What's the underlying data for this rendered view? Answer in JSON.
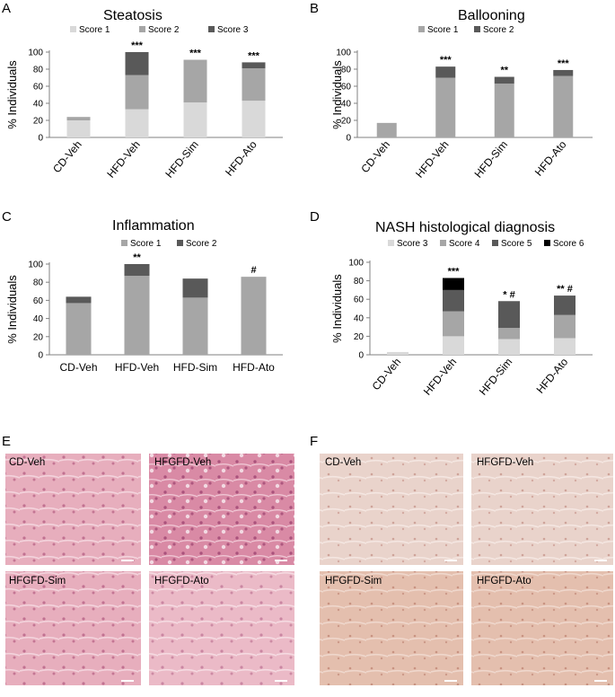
{
  "panels": {
    "A": {
      "letter": "A",
      "chart_data": {
        "type": "bar",
        "stacked": true,
        "title": "Steatosis",
        "ylabel": "% Individuals",
        "ylim": [
          0,
          100
        ],
        "yticks": [
          0,
          20,
          40,
          60,
          80,
          100
        ],
        "categories": [
          "CD-Veh",
          "HFD-Veh",
          "HFD-Sim",
          "HFD-Ato"
        ],
        "series": [
          {
            "name": "Score 1",
            "color": "#d9d9d9",
            "values": [
              20,
              33,
              41,
              43
            ]
          },
          {
            "name": "Score 2",
            "color": "#a6a6a6",
            "values": [
              4,
              40,
              50,
              38
            ]
          },
          {
            "name": "Score 3",
            "color": "#595959",
            "values": [
              0,
              27,
              0,
              7
            ]
          }
        ],
        "annotations": [
          "",
          "***",
          "***",
          "***"
        ],
        "legend": "top"
      }
    },
    "B": {
      "letter": "B",
      "chart_data": {
        "type": "bar",
        "stacked": true,
        "title": "Ballooning",
        "ylabel": "% Individuals",
        "ylim": [
          0,
          100
        ],
        "yticks": [
          0,
          20,
          40,
          60,
          80,
          100
        ],
        "categories": [
          "CD-Veh",
          "HFD-Veh",
          "HFD-Sim",
          "HFD-Ato"
        ],
        "series": [
          {
            "name": "Score 1",
            "color": "#a6a6a6",
            "values": [
              17,
              70,
              63,
              72
            ]
          },
          {
            "name": "Score 2",
            "color": "#595959",
            "values": [
              0,
              13,
              8,
              7
            ]
          }
        ],
        "annotations": [
          "",
          "***",
          "**",
          "***"
        ],
        "legend": "top"
      }
    },
    "C": {
      "letter": "C",
      "chart_data": {
        "type": "bar",
        "stacked": true,
        "title": "Inflammation",
        "ylabel": "% Individuals",
        "ylim": [
          0,
          100
        ],
        "yticks": [
          0,
          20,
          40,
          60,
          80,
          100
        ],
        "categories": [
          "CD-Veh",
          "HFD-Veh",
          "HFD-Sim",
          "HFD-Ato"
        ],
        "series": [
          {
            "name": "Score 1",
            "color": "#a6a6a6",
            "values": [
              57,
              87,
              63,
              86
            ]
          },
          {
            "name": "Score 2",
            "color": "#595959",
            "values": [
              7,
              13,
              21,
              0
            ]
          }
        ],
        "annotations": [
          "",
          "**",
          "",
          "#"
        ],
        "legend": "top"
      }
    },
    "D": {
      "letter": "D",
      "chart_data": {
        "type": "bar",
        "stacked": true,
        "title": "NASH histological diagnosis",
        "ylabel": "% Individuals",
        "ylim": [
          0,
          100
        ],
        "yticks": [
          0,
          20,
          40,
          60,
          80,
          100
        ],
        "categories": [
          "CD-Veh",
          "HFD-Veh",
          "HFD-Sim",
          "HFD-Ato"
        ],
        "series": [
          {
            "name": "Score 3",
            "color": "#d9d9d9",
            "values": [
              3,
              20,
              17,
              18
            ]
          },
          {
            "name": "Score 4",
            "color": "#a6a6a6",
            "values": [
              0,
              27,
              12,
              25
            ]
          },
          {
            "name": "Score 5",
            "color": "#595959",
            "values": [
              0,
              23,
              29,
              21
            ]
          },
          {
            "name": "Score 6",
            "color": "#000000",
            "values": [
              0,
              13,
              0,
              0
            ]
          }
        ],
        "annotations": [
          "",
          "***",
          "* #",
          "** #"
        ],
        "legend": "top"
      }
    }
  },
  "micrographs": {
    "E": {
      "letter": "E",
      "stain_color": "#e4a9ba",
      "labels": [
        "CD-Veh",
        "HFGFD-Veh",
        "HFGFD-Sim",
        "HFGFD-Ato"
      ]
    },
    "F": {
      "letter": "F",
      "stain_color": "#e6cdc4",
      "labels": [
        "CD-Veh",
        "HFGFD-Veh",
        "HFGFD-Sim",
        "HFGFD-Ato"
      ]
    }
  }
}
